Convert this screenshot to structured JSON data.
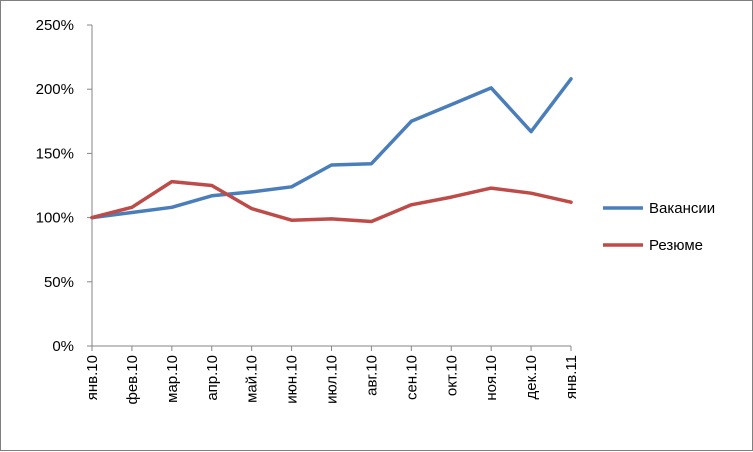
{
  "chart_data": {
    "type": "line",
    "title": "",
    "xlabel": "",
    "ylabel": "",
    "categories": [
      "янв.10",
      "фев.10",
      "мар.10",
      "апр.10",
      "май.10",
      "июн.10",
      "июл.10",
      "авг.10",
      "сен.10",
      "окт.10",
      "ноя.10",
      "дек.10",
      "янв.11"
    ],
    "ylim": [
      0,
      250
    ],
    "yticks": [
      0,
      50,
      100,
      150,
      200,
      250
    ],
    "ytick_labels": [
      "0%",
      "50%",
      "100%",
      "150%",
      "200%",
      "250%"
    ],
    "y_unit": "%",
    "grid": false,
    "legend_position": "right",
    "series": [
      {
        "name": "Вакансии",
        "color": "#4a7ebb",
        "values": [
          100,
          104,
          108,
          117,
          120,
          124,
          141,
          142,
          175,
          188,
          201,
          167,
          208
        ]
      },
      {
        "name": "Резюме",
        "color": "#be4b48",
        "values": [
          100,
          108,
          128,
          125,
          107,
          98,
          99,
          97,
          110,
          116,
          123,
          119,
          112
        ]
      }
    ]
  }
}
